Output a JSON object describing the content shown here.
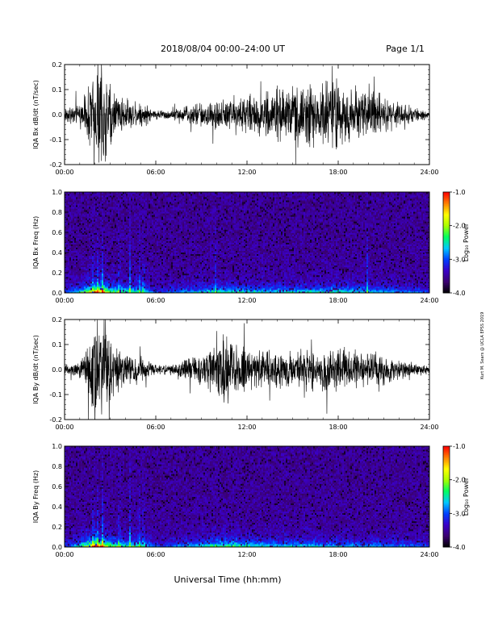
{
  "header": {
    "title": "2018/08/04  00:00–24:00 UT",
    "page": "Page 1/1"
  },
  "footer": {
    "xlabel": "Universal Time (hh:mm)",
    "side_note": "Kurt M. Sears @ UCLA EPSS 2019"
  },
  "chart_data": [
    {
      "type": "line",
      "panel": "bx-waveform",
      "ylabel": "IQA Bx dB/dt (nT/sec)",
      "xlim": [
        0,
        24
      ],
      "ylim": [
        -0.2,
        0.2
      ],
      "x_ticks": [
        "00:00",
        "06:00",
        "12:00",
        "18:00",
        "24:00"
      ],
      "y_ticks": [
        "-0.2",
        "-0.1",
        "0.0",
        "0.1",
        "0.2"
      ],
      "envelope_hours": [
        0,
        1,
        1.5,
        2,
        2.5,
        3,
        3.5,
        4,
        5,
        6,
        7,
        8,
        9,
        10,
        11,
        12,
        13,
        14,
        15,
        16,
        17,
        18,
        19,
        20,
        21,
        22,
        23,
        24
      ],
      "envelope_amplitude": [
        0.03,
        0.05,
        0.12,
        0.25,
        0.25,
        0.15,
        0.1,
        0.07,
        0.06,
        0.02,
        0.025,
        0.04,
        0.06,
        0.07,
        0.08,
        0.09,
        0.1,
        0.12,
        0.13,
        0.14,
        0.15,
        0.16,
        0.13,
        0.12,
        0.08,
        0.06,
        0.03,
        0.02
      ],
      "series_color": "#000000"
    },
    {
      "type": "heatmap",
      "panel": "bx-spectrogram",
      "ylabel": "IQA Bx Freq (Hz)",
      "xlim": [
        0,
        24
      ],
      "ylim": [
        0,
        1.0
      ],
      "x_ticks": [
        "00:00",
        "06:00",
        "12:00",
        "18:00",
        "24:00"
      ],
      "y_ticks": [
        "0.0",
        "0.2",
        "0.4",
        "0.6",
        "0.8",
        "1.0"
      ],
      "colorbar": {
        "label": "Log₁₀ Power",
        "range": [
          -4.0,
          -1.0
        ],
        "ticks": [
          "-4.0",
          "-3.0",
          "-2.0",
          "-1.0"
        ],
        "colors": [
          "#000000",
          "#3a0070",
          "#3a00c8",
          "#0040ff",
          "#00c8ff",
          "#00ff60",
          "#a8ff00",
          "#ffff00",
          "#ff8000",
          "#ff0000"
        ]
      },
      "activity_hours": [
        0,
        1,
        2,
        2.5,
        3,
        4,
        5,
        6,
        8,
        10,
        12,
        14,
        16,
        18,
        20,
        22,
        24
      ],
      "activity_level": [
        0.2,
        0.4,
        0.95,
        0.85,
        0.6,
        0.5,
        0.45,
        0.2,
        0.3,
        0.45,
        0.4,
        0.38,
        0.4,
        0.45,
        0.35,
        0.3,
        0.2
      ],
      "vertical_streak_hours": [
        1.9,
        2.2,
        2.5,
        3.6,
        4.3,
        4.9,
        5.2,
        9.9,
        19.9
      ]
    },
    {
      "type": "line",
      "panel": "by-waveform",
      "ylabel": "IQA By dB/dt (nT/sec)",
      "xlim": [
        0,
        24
      ],
      "ylim": [
        -0.2,
        0.2
      ],
      "x_ticks": [
        "00:00",
        "06:00",
        "12:00",
        "18:00",
        "24:00"
      ],
      "y_ticks": [
        "-0.2",
        "-0.1",
        "0.0",
        "0.1",
        "0.2"
      ],
      "envelope_hours": [
        0,
        1,
        1.5,
        2,
        2.5,
        3,
        3.5,
        4,
        5,
        6,
        7,
        8,
        9,
        10,
        10.5,
        11,
        12,
        13,
        14,
        15,
        16,
        17,
        18,
        19,
        20,
        21,
        22,
        23,
        24
      ],
      "envelope_amplitude": [
        0.02,
        0.04,
        0.1,
        0.25,
        0.25,
        0.14,
        0.1,
        0.07,
        0.06,
        0.02,
        0.03,
        0.05,
        0.07,
        0.13,
        0.18,
        0.12,
        0.1,
        0.09,
        0.08,
        0.09,
        0.1,
        0.09,
        0.1,
        0.09,
        0.08,
        0.07,
        0.05,
        0.03,
        0.02
      ],
      "series_color": "#000000"
    },
    {
      "type": "heatmap",
      "panel": "by-spectrogram",
      "ylabel": "IQA By Freq (Hz)",
      "xlim": [
        0,
        24
      ],
      "ylim": [
        0,
        1.0
      ],
      "x_ticks": [
        "00:00",
        "06:00",
        "12:00",
        "18:00",
        "24:00"
      ],
      "y_ticks": [
        "0.0",
        "0.2",
        "0.4",
        "0.6",
        "0.8",
        "1.0"
      ],
      "colorbar": {
        "label": "Log₁₀ Power",
        "range": [
          -4.0,
          -1.0
        ],
        "ticks": [
          "-4.0",
          "-3.0",
          "-2.0",
          "-1.0"
        ],
        "colors": [
          "#000000",
          "#3a0070",
          "#3a00c8",
          "#0040ff",
          "#00c8ff",
          "#00ff60",
          "#a8ff00",
          "#ffff00",
          "#ff8000",
          "#ff0000"
        ]
      },
      "activity_hours": [
        0,
        1,
        2,
        2.5,
        3,
        4,
        5,
        6,
        8,
        10,
        11,
        12,
        14,
        16,
        18,
        20,
        22,
        24
      ],
      "activity_level": [
        0.2,
        0.4,
        0.95,
        0.85,
        0.6,
        0.5,
        0.45,
        0.2,
        0.3,
        0.5,
        0.55,
        0.42,
        0.38,
        0.36,
        0.34,
        0.3,
        0.28,
        0.2
      ],
      "vertical_streak_hours": [
        1.9,
        2.2,
        2.5,
        3.6,
        4.3,
        4.9,
        5.2
      ]
    }
  ]
}
